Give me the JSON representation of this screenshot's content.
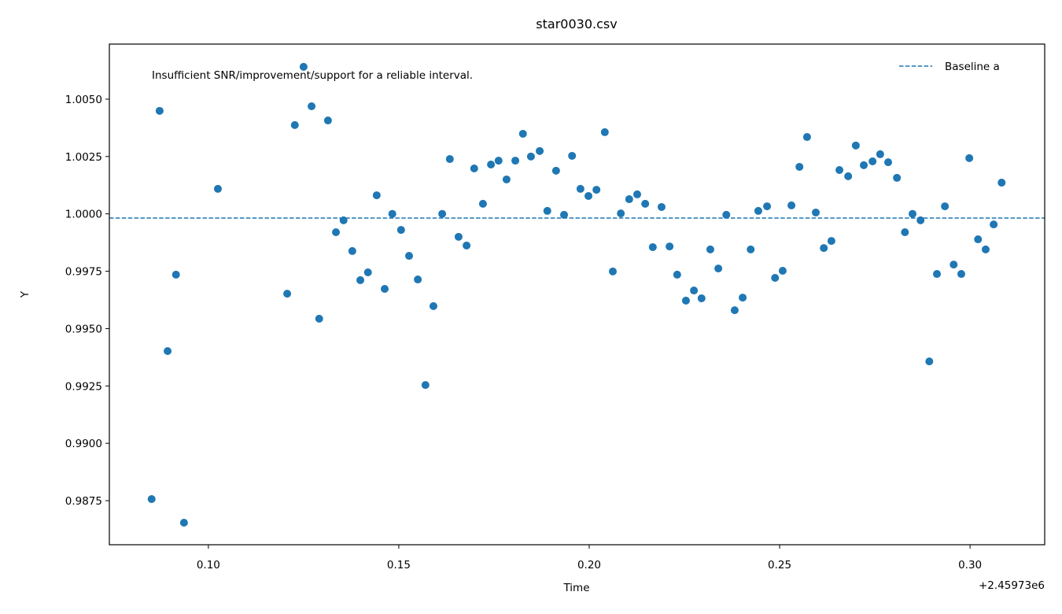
{
  "chart_data": {
    "type": "scatter",
    "title": "star0030.csv",
    "xlabel": "Time",
    "ylabel": "Y",
    "x_offset_label": "+2.45973e6",
    "annotation": "Insufficient SNR/improvement/support for a reliable interval.",
    "legend_loc": "upper right",
    "grid": false,
    "xlim": [
      0.074,
      0.3196
    ],
    "ylim": [
      0.98558,
      1.0074
    ],
    "xticks": [
      {
        "value": 0.1,
        "label": "0.10"
      },
      {
        "value": 0.15,
        "label": "0.15"
      },
      {
        "value": 0.2,
        "label": "0.20"
      },
      {
        "value": 0.25,
        "label": "0.25"
      },
      {
        "value": 0.3,
        "label": "0.30"
      }
    ],
    "yticks": [
      {
        "value": 0.9875,
        "label": "0.9875"
      },
      {
        "value": 0.99,
        "label": "0.9900"
      },
      {
        "value": 0.9925,
        "label": "0.9925"
      },
      {
        "value": 0.995,
        "label": "0.9950"
      },
      {
        "value": 0.9975,
        "label": "0.9975"
      },
      {
        "value": 1.0,
        "label": "1.0000"
      },
      {
        "value": 1.0025,
        "label": "1.0025"
      },
      {
        "value": 1.005,
        "label": "1.0050"
      }
    ],
    "hlines": [
      {
        "name": "Baseline a",
        "value": 0.99982,
        "color": "#1f77b4",
        "style": "dashed"
      }
    ],
    "series": [
      {
        "color": "#1f77b4",
        "x": [
          0.0851,
          0.0872,
          0.0893,
          0.0915,
          0.0936,
          0.1025,
          0.1207,
          0.1227,
          0.125,
          0.1271,
          0.1291,
          0.1314,
          0.1335,
          0.1355,
          0.1378,
          0.1399,
          0.1419,
          0.1442,
          0.1463,
          0.1483,
          0.1506,
          0.1527,
          0.155,
          0.157,
          0.1591,
          0.1614,
          0.1634,
          0.1657,
          0.1678,
          0.1698,
          0.1721,
          0.1742,
          0.1762,
          0.1783,
          0.1806,
          0.1826,
          0.1847,
          0.187,
          0.189,
          0.1913,
          0.1934,
          0.1955,
          0.1977,
          0.1998,
          0.2019,
          0.2041,
          0.2062,
          0.2083,
          0.2105,
          0.2126,
          0.2147,
          0.2167,
          0.219,
          0.2211,
          0.2231,
          0.2254,
          0.2275,
          0.2295,
          0.2318,
          0.2339,
          0.236,
          0.2382,
          0.2403,
          0.2424,
          0.2444,
          0.2467,
          0.2488,
          0.2508,
          0.2531,
          0.2552,
          0.2572,
          0.2595,
          0.2616,
          0.2636,
          0.2657,
          0.268,
          0.27,
          0.2721,
          0.2744,
          0.2764,
          0.2785,
          0.2808,
          0.2829,
          0.2849,
          0.287,
          0.2893,
          0.2913,
          0.2934,
          0.2957,
          0.2977,
          0.2998,
          0.3021,
          0.3041,
          0.3062,
          0.3083
        ],
        "values": [
          0.98757,
          1.00449,
          0.99402,
          0.99735,
          0.98654,
          1.00109,
          0.99652,
          1.00387,
          1.00641,
          1.00469,
          0.99543,
          1.00407,
          0.9992,
          0.99972,
          0.99838,
          0.99711,
          0.99745,
          1.00081,
          0.99673,
          1.0,
          0.9993,
          0.99817,
          0.99714,
          0.99254,
          0.99598,
          1.0,
          1.00239,
          0.999,
          0.99862,
          1.00198,
          1.00044,
          1.00215,
          1.00232,
          1.0015,
          1.00232,
          1.00349,
          1.0025,
          1.00274,
          1.00013,
          1.00188,
          0.99996,
          1.00253,
          1.00109,
          1.00078,
          1.00105,
          1.00356,
          0.99749,
          1.00002,
          1.00064,
          1.00085,
          1.00044,
          0.99855,
          1.0003,
          0.99858,
          0.99735,
          0.99622,
          0.99666,
          0.99632,
          0.99845,
          0.99762,
          0.99996,
          0.9958,
          0.99635,
          0.99845,
          1.00013,
          1.00033,
          0.99721,
          0.99752,
          1.00037,
          1.00205,
          1.00335,
          1.00006,
          0.99851,
          0.99882,
          1.00191,
          1.00164,
          1.00298,
          1.00212,
          1.00229,
          1.0026,
          1.00225,
          1.00157,
          0.9992,
          1.0,
          0.99972,
          0.99357,
          0.99738,
          1.00033,
          0.99779,
          0.99738,
          1.00243,
          0.99889,
          0.99845,
          0.99954,
          1.00136
        ]
      }
    ]
  }
}
